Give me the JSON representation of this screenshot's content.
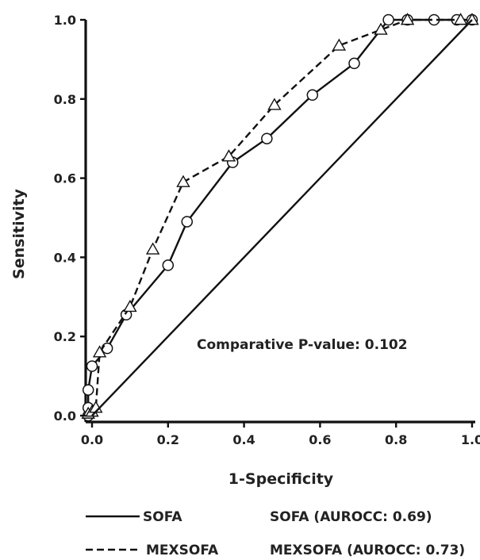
{
  "chart_data": {
    "type": "line",
    "xlabel": "1-Specificity",
    "ylabel": "Sensitivity",
    "xlim": [
      0.0,
      1.0
    ],
    "ylim": [
      0.0,
      1.0
    ],
    "x_ticks": [
      "0.0",
      "0.2",
      "0.4",
      "0.6",
      "0.8",
      "1.0"
    ],
    "y_ticks": [
      "0.0",
      "0.2",
      "0.4",
      "0.6",
      "0.8",
      "1.0"
    ],
    "grid": false,
    "annotation": "Comparative P-value: 0.102",
    "series": [
      {
        "name": "SOFA",
        "line_style": "solid",
        "marker": "circle",
        "x": [
          -0.01,
          -0.01,
          -0.01,
          0.0,
          0.04,
          0.09,
          0.2,
          0.25,
          0.37,
          0.46,
          0.58,
          0.69,
          0.78,
          0.83,
          0.9,
          0.96,
          1.0
        ],
        "y": [
          0.0,
          0.02,
          0.065,
          0.125,
          0.17,
          0.255,
          0.38,
          0.49,
          0.64,
          0.7,
          0.81,
          0.89,
          1.0,
          1.0,
          1.0,
          1.0,
          1.0
        ]
      },
      {
        "name": "MEXSOFA",
        "line_style": "dashed",
        "marker": "triangle",
        "x": [
          -0.01,
          0.0,
          0.01,
          0.02,
          0.1,
          0.16,
          0.24,
          0.36,
          0.48,
          0.65,
          0.76,
          0.83,
          0.97,
          1.0
        ],
        "y": [
          0.005,
          0.01,
          0.02,
          0.16,
          0.275,
          0.42,
          0.59,
          0.655,
          0.785,
          0.935,
          0.975,
          1.0,
          1.0,
          1.0
        ]
      },
      {
        "name": "reference",
        "line_style": "solid",
        "marker": "none",
        "x": [
          0.0,
          1.0
        ],
        "y": [
          0.0,
          1.0
        ]
      }
    ],
    "legend": {
      "placement": "bottom",
      "entries": [
        {
          "series": "SOFA",
          "key_label": "SOFA",
          "value_label": "SOFA (AUROCC: 0.69)"
        },
        {
          "series": "MEXSOFA",
          "key_label": "MEXSOFA",
          "value_label": "MEXSOFA (AUROCC: 0.73)"
        }
      ]
    }
  }
}
